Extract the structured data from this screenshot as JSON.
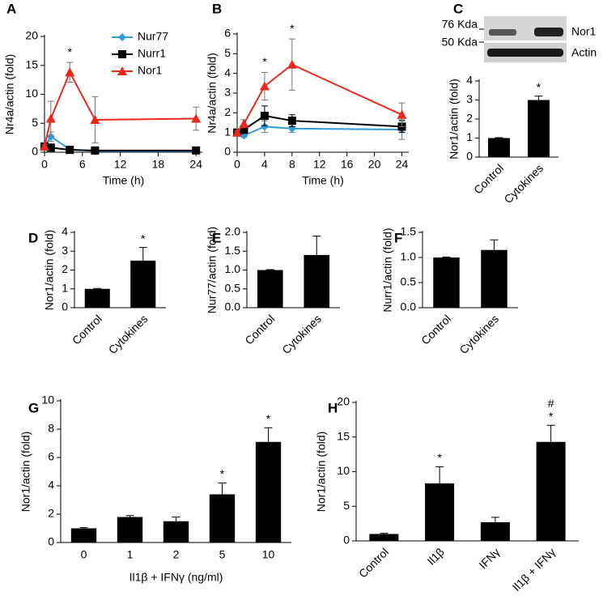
{
  "chart_data": [
    {
      "type": "line",
      "panel": "A",
      "ylabel": "Nr4a/actin (fold)",
      "xlabel": "Time (h)",
      "xlim": [
        0,
        25
      ],
      "xticks": [
        0,
        6,
        12,
        18,
        24
      ],
      "ylim": [
        0,
        20
      ],
      "yticks": [
        0,
        5,
        10,
        15,
        20
      ],
      "legend": true,
      "x": [
        0,
        1,
        4,
        8,
        24
      ],
      "series": [
        {
          "name": "Nur77",
          "color": "#2f9bd7",
          "marker": "diamond",
          "values": [
            1,
            2.7,
            0.5,
            0.2,
            0.2
          ],
          "errors": [
            0.2,
            0.8,
            0.3,
            0.2,
            0.2
          ]
        },
        {
          "name": "Nurr1",
          "color": "#000000",
          "marker": "square",
          "values": [
            1,
            0.8,
            0.4,
            0.3,
            0.3
          ],
          "errors": [
            0.2,
            0.3,
            0.2,
            0.2,
            0.2
          ]
        },
        {
          "name": "Nor1",
          "color": "#e8291c",
          "marker": "triangle",
          "values": [
            1,
            5.8,
            13.8,
            5.6,
            5.8
          ],
          "errors": [
            0.3,
            3,
            1.7,
            4,
            2
          ]
        }
      ],
      "annotations": [
        null,
        null,
        "*",
        null,
        null
      ]
    },
    {
      "type": "line",
      "panel": "B",
      "ylabel": "Nr4a/actin (fold)",
      "xlabel": "Time (h)",
      "xlim": [
        0,
        25
      ],
      "xticks": [
        0,
        4,
        8,
        12,
        16,
        20,
        24
      ],
      "ylim": [
        0,
        6
      ],
      "yticks": [
        0,
        1,
        2,
        3,
        4,
        5,
        6
      ],
      "legend": false,
      "x": [
        0,
        1,
        4,
        8,
        24
      ],
      "series": [
        {
          "name": "Nur77",
          "color": "#2f9bd7",
          "marker": "diamond",
          "values": [
            1,
            0.85,
            1.3,
            1.2,
            1.15
          ],
          "errors": [
            0.1,
            0.1,
            0.3,
            0.2,
            0.5
          ]
        },
        {
          "name": "Nurr1",
          "color": "#000000",
          "marker": "square",
          "values": [
            1,
            1.15,
            1.85,
            1.6,
            1.3
          ],
          "errors": [
            0.1,
            0.2,
            0.5,
            0.3,
            0.3
          ]
        },
        {
          "name": "Nor1",
          "color": "#e8291c",
          "marker": "triangle",
          "values": [
            1,
            1.45,
            3.35,
            4.45,
            1.9
          ],
          "errors": [
            0.1,
            0.2,
            0.7,
            1.3,
            0.6
          ]
        }
      ],
      "annotations": [
        null,
        null,
        "*",
        "*",
        null
      ]
    },
    {
      "type": "bar",
      "panel": "C",
      "ylabel": "Nor1/actin (fold)",
      "color": "#000000",
      "blot_labels": {
        "marker_high": "76 Kda",
        "marker_low": "50 Kda",
        "band_top": "Nor1",
        "band_bottom": "Actin"
      },
      "categories": [
        "Control",
        "Cytokines"
      ],
      "values": [
        1,
        3.0
      ],
      "errors": [
        0.02,
        0.2
      ],
      "ylim": [
        0,
        4
      ],
      "yticks": [
        0,
        1,
        2,
        3,
        4
      ],
      "stars": [
        null,
        "*"
      ]
    },
    {
      "type": "bar",
      "panel": "D",
      "ylabel": "Nor1/actin (fold)",
      "color": "#000000",
      "categories": [
        "Control",
        "Cytokines"
      ],
      "values": [
        1,
        2.5
      ],
      "errors": [
        0.02,
        0.7
      ],
      "ylim": [
        0,
        4
      ],
      "yticks": [
        0,
        1,
        2,
        3,
        4
      ],
      "stars": [
        null,
        "*"
      ]
    },
    {
      "type": "bar",
      "panel": "E",
      "ylabel": "Nur77/actin (fold)",
      "color": "#000000",
      "categories": [
        "Control",
        "Cytokines"
      ],
      "values": [
        1.0,
        1.4
      ],
      "errors": [
        0.01,
        0.5
      ],
      "ylim": [
        0,
        2
      ],
      "yticks": [
        {
          "value": 0,
          "label": "0.0"
        },
        0.5,
        {
          "value": 1,
          "label": "1.0"
        },
        1.5,
        {
          "value": 2,
          "label": "2.0"
        }
      ]
    },
    {
      "type": "bar",
      "panel": "F",
      "ylabel": "Nurr1/actin (fold)",
      "color": "#000000",
      "categories": [
        "Control",
        "Cytokines"
      ],
      "values": [
        1.0,
        1.15
      ],
      "errors": [
        0.01,
        0.2
      ],
      "ylim": [
        0,
        1.5
      ],
      "yticks": [
        {
          "value": 0,
          "label": "0.0"
        },
        0.5,
        {
          "value": 1,
          "label": "1.0"
        },
        1.5
      ]
    },
    {
      "type": "bar",
      "panel": "G",
      "ylabel": "Nor1/actin (fold)",
      "xlabel": "Il1β + IFNγ (ng/ml)",
      "color": "#000000",
      "categories": [
        "0",
        "1",
        "2",
        "5",
        "10"
      ],
      "values": [
        1,
        1.8,
        1.5,
        3.4,
        7.1
      ],
      "errors": [
        0.05,
        0.1,
        0.3,
        0.8,
        1.0
      ],
      "ylim": [
        0,
        10
      ],
      "yticks": [
        0,
        2,
        4,
        6,
        8,
        10
      ],
      "stars": [
        null,
        null,
        null,
        "*",
        "*"
      ]
    },
    {
      "type": "bar",
      "panel": "H",
      "ylabel": "Nor1/actin (fold)",
      "color": "#000000",
      "categories": [
        "Control",
        "Il1β",
        "IFNγ",
        "Il1β + IFNγ"
      ],
      "values": [
        1,
        8.3,
        2.7,
        14.3
      ],
      "errors": [
        0.1,
        2.4,
        0.7,
        2.4
      ],
      "ylim": [
        0,
        20
      ],
      "yticks": [
        0,
        5,
        10,
        15,
        20
      ],
      "stars": [
        null,
        "*",
        null,
        "*"
      ],
      "hashes": [
        null,
        null,
        null,
        "#"
      ]
    }
  ]
}
